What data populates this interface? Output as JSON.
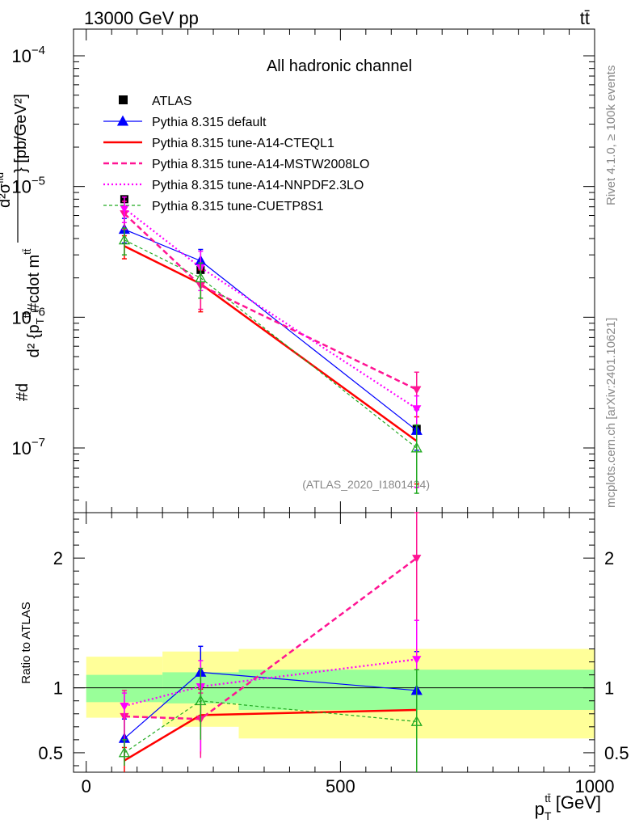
{
  "header": {
    "left": "13000 GeV pp",
    "right": "tt̄"
  },
  "side_labels": {
    "rivet": "Rivet 4.1.0, ≥ 100k events",
    "mcplots": "mcplots.cern.ch [arXiv:2401.10621]"
  },
  "colors": {
    "atlas": "#000000",
    "default": "#0000ff",
    "cteql1": "#ff0000",
    "mstw": "#ff1493",
    "nnpdf": "#ff00ff",
    "cuetp": "#22aa22",
    "band_inner": "#99ff99",
    "band_outer": "#ffff99"
  },
  "chart_data": [
    {
      "type": "line",
      "title": "All hadronic channel",
      "annotation": "(ATLAS_2020_I1801434)",
      "yscale": "log",
      "xlim": [
        -25,
        1000
      ],
      "ylim": [
        3.2e-08,
        0.00016
      ],
      "xlabel": "p_T^{tt̄} [GeV]",
      "ylabel": {
        "main": "#d",
        "num": "d²σ^{fid}",
        "den": "d² {p_T^{tt̄} #cdot m^{tt̄}}",
        "unit": "} [pb/GeV²]"
      },
      "ytick_labels": [
        {
          "value": 1e-07,
          "base": "10",
          "exp": "−7"
        },
        {
          "value": 1e-06,
          "base": "10",
          "exp": "−6"
        },
        {
          "value": 1e-05,
          "base": "10",
          "exp": "−5"
        },
        {
          "value": 0.0001,
          "base": "10",
          "exp": "−4"
        }
      ],
      "x": [
        75,
        225,
        650
      ],
      "data": {
        "name": "ATLAS",
        "values": [
          8e-06,
          2.3e-06,
          1.4e-07
        ],
        "bins": [
          [
            0,
            150
          ],
          [
            150,
            300
          ],
          [
            300,
            1000
          ]
        ]
      },
      "series": [
        {
          "name": "Pythia 8.315 default",
          "key": "default",
          "values": [
            4.7e-06,
            2.7e-06,
            1.36e-07
          ],
          "err_lo": [
            1e-06,
            9e-07,
            4e-08
          ],
          "err_hi": [
            1e-06,
            6e-07,
            6e-08
          ]
        },
        {
          "name": "Pythia 8.315 tune-A14-CTEQL1",
          "key": "cteql1",
          "values": [
            3.5e-06,
            1.8e-06,
            1.13e-07
          ],
          "err_lo": [
            7e-07,
            7e-07,
            6e-08
          ],
          "err_hi": [
            7e-07,
            5e-07,
            6e-08
          ]
        },
        {
          "name": "Pythia 8.315 tune-A14-MSTW2008LO",
          "key": "mstw",
          "values": [
            6.2e-06,
            1.75e-06,
            2.8e-07
          ],
          "err_lo": [
            1.5e-06,
            6e-07,
            2.3e-07
          ],
          "err_hi": [
            1.5e-06,
            6e-07,
            1e-07
          ]
        },
        {
          "name": "Pythia 8.315 tune-A14-NNPDF2.3LO",
          "key": "nnpdf",
          "values": [
            6.8e-06,
            2.4e-06,
            2e-07
          ],
          "err_lo": [
            1.5e-06,
            8e-07,
            1.5e-07
          ],
          "err_hi": [
            1.5e-06,
            8e-07,
            5e-08
          ]
        },
        {
          "name": "Pythia 8.315 tune-CUETP8S1",
          "key": "cuetp",
          "values": [
            3.9e-06,
            2e-06,
            1e-07
          ],
          "err_lo": [
            9e-07,
            6e-07,
            5.5e-08
          ],
          "err_hi": [
            9e-07,
            6e-07,
            5e-08
          ]
        }
      ]
    },
    {
      "type": "line",
      "ylabel": "Ratio to ATLAS",
      "yscale": "linear",
      "xlim": [
        -25,
        1000
      ],
      "ylim": [
        0.35,
        2.35
      ],
      "xticks": [
        0,
        500,
        1000
      ],
      "yticks": [
        0.5,
        1,
        2
      ],
      "band_inner": {
        "bins": [
          [
            0,
            150
          ],
          [
            150,
            300
          ],
          [
            300,
            1000
          ]
        ],
        "lo": [
          0.89,
          0.88,
          0.83
        ],
        "hi": [
          1.1,
          1.12,
          1.14
        ]
      },
      "band_outer": {
        "bins": [
          [
            0,
            150
          ],
          [
            150,
            300
          ],
          [
            300,
            1000
          ]
        ],
        "lo": [
          0.77,
          0.7,
          0.61
        ],
        "hi": [
          1.24,
          1.28,
          1.3
        ]
      },
      "x": [
        75,
        225,
        650
      ],
      "series": [
        {
          "key": "default",
          "values": [
            0.61,
            1.12,
            0.98
          ],
          "err_lo": [
            0.15,
            0.4,
            0.5
          ],
          "err_hi": [
            0.15,
            0.2,
            0.3
          ]
        },
        {
          "key": "cteql1",
          "values": [
            0.44,
            0.79,
            0.83
          ],
          "err_lo": [
            0.1,
            0.3,
            0.5
          ],
          "err_hi": [
            0.1,
            0.2,
            0.4
          ]
        },
        {
          "key": "mstw",
          "values": [
            0.78,
            0.76,
            2.0
          ],
          "err_lo": [
            0.3,
            0.3,
            1.7
          ],
          "err_hi": [
            0.2,
            0.2,
            0.5
          ]
        },
        {
          "key": "nnpdf",
          "values": [
            0.86,
            1.01,
            1.22
          ],
          "err_lo": [
            0.1,
            0.5,
            0.8
          ],
          "err_hi": [
            0.1,
            0.2,
            0.3
          ]
        },
        {
          "key": "cuetp",
          "values": [
            0.5,
            0.9,
            0.74
          ],
          "err_lo": [
            0.1,
            0.3,
            0.4
          ],
          "err_hi": [
            0.1,
            0.25,
            0.4
          ]
        }
      ]
    }
  ]
}
